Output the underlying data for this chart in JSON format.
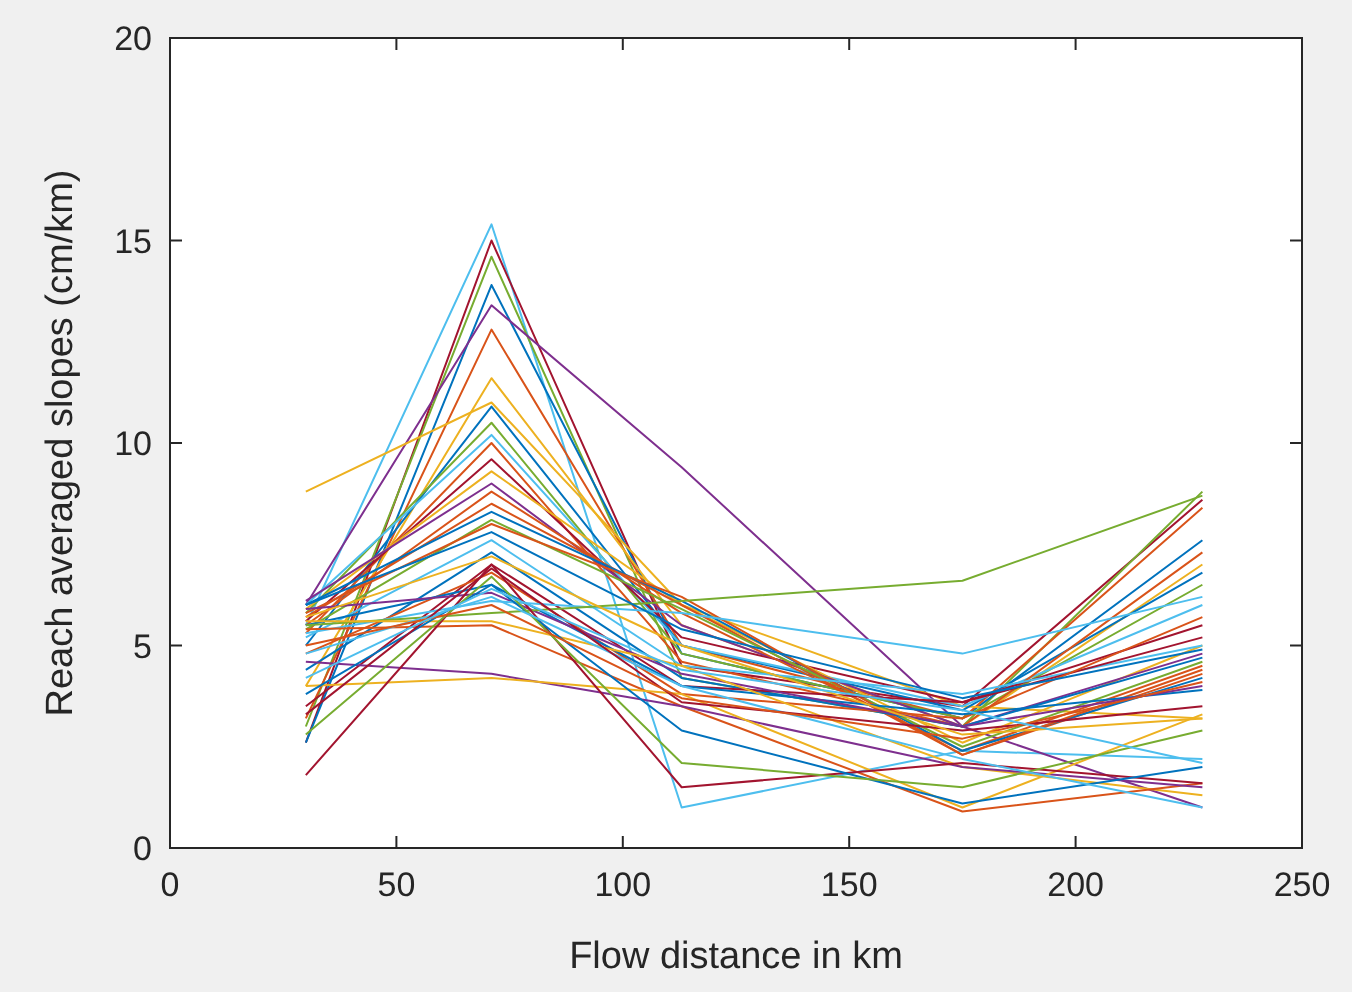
{
  "chart_data": {
    "type": "line",
    "xlabel": "Flow distance in km",
    "ylabel": "Reach averaged slopes (cm/km)",
    "x": [
      30,
      71,
      113,
      175,
      228
    ],
    "xlim": [
      0,
      250
    ],
    "xticks": [
      0,
      50,
      100,
      150,
      200,
      250
    ],
    "ylim": [
      0,
      20
    ],
    "yticks": [
      0,
      5,
      10,
      15,
      20
    ],
    "series": [
      {
        "color": "#4dbeee",
        "values": [
          5.5,
          15.4,
          1.0,
          2.4,
          2.2
        ]
      },
      {
        "color": "#a2142f",
        "values": [
          2.6,
          15.0,
          4.5,
          3.5,
          8.6
        ]
      },
      {
        "color": "#77ac30",
        "values": [
          3.0,
          14.6,
          4.2,
          3.0,
          8.8
        ]
      },
      {
        "color": "#0072bd",
        "values": [
          2.6,
          13.9,
          4.8,
          3.2,
          7.6
        ]
      },
      {
        "color": "#7e2f8e",
        "values": [
          6.0,
          13.4,
          9.4,
          3.0,
          1.0
        ]
      },
      {
        "color": "#d95319",
        "values": [
          3.2,
          12.8,
          5.0,
          3.2,
          8.4
        ]
      },
      {
        "color": "#edb120",
        "values": [
          8.8,
          11.0,
          6.0,
          3.5,
          3.2
        ]
      },
      {
        "color": "#edb120",
        "values": [
          4.0,
          11.6,
          5.5,
          3.0,
          7.0
        ]
      },
      {
        "color": "#0072bd",
        "values": [
          5.0,
          10.9,
          5.0,
          3.4,
          6.8
        ]
      },
      {
        "color": "#77ac30",
        "values": [
          5.8,
          10.5,
          4.8,
          3.2,
          6.5
        ]
      },
      {
        "color": "#4dbeee",
        "values": [
          6.0,
          10.2,
          5.0,
          3.5,
          6.0
        ]
      },
      {
        "color": "#d95319",
        "values": [
          5.3,
          10.0,
          4.6,
          3.0,
          7.3
        ]
      },
      {
        "color": "#a2142f",
        "values": [
          5.6,
          9.6,
          5.2,
          3.6,
          5.5
        ]
      },
      {
        "color": "#edb120",
        "values": [
          5.9,
          9.3,
          6.0,
          2.6,
          5.0
        ]
      },
      {
        "color": "#7e2f8e",
        "values": [
          6.1,
          9.0,
          5.5,
          3.0,
          4.8
        ]
      },
      {
        "color": "#d95319",
        "values": [
          5.5,
          8.8,
          5.8,
          2.4,
          4.5
        ]
      },
      {
        "color": "#d95319",
        "values": [
          5.7,
          8.5,
          6.0,
          2.3,
          4.3
        ]
      },
      {
        "color": "#0072bd",
        "values": [
          6.0,
          8.3,
          6.1,
          2.4,
          4.2
        ]
      },
      {
        "color": "#77ac30",
        "values": [
          5.4,
          8.1,
          5.9,
          2.5,
          4.6
        ]
      },
      {
        "color": "#d95319",
        "values": [
          5.8,
          8.0,
          6.2,
          2.3,
          4.4
        ]
      },
      {
        "color": "#4dbeee",
        "values": [
          5.2,
          7.6,
          4.5,
          3.8,
          5.0
        ]
      },
      {
        "color": "#0072bd",
        "values": [
          4.4,
          7.3,
          4.2,
          3.0,
          4.7
        ]
      },
      {
        "color": "#a2142f",
        "values": [
          3.5,
          7.0,
          4.0,
          3.6,
          5.2
        ]
      },
      {
        "color": "#d95319",
        "values": [
          4.8,
          6.8,
          3.8,
          3.2,
          5.7
        ]
      },
      {
        "color": "#0072bd",
        "values": [
          5.5,
          6.5,
          4.0,
          3.3,
          3.9
        ]
      },
      {
        "color": "#7e2f8e",
        "values": [
          5.9,
          6.3,
          4.3,
          3.0,
          4.0
        ]
      },
      {
        "color": "#4dbeee",
        "values": [
          5.3,
          6.1,
          5.8,
          4.8,
          6.2
        ]
      },
      {
        "color": "#77ac30",
        "values": [
          5.5,
          5.8,
          6.1,
          6.6,
          8.7
        ]
      },
      {
        "color": "#edb120",
        "values": [
          5.6,
          5.6,
          4.5,
          2.0,
          1.3
        ]
      },
      {
        "color": "#d95319",
        "values": [
          5.4,
          5.5,
          3.5,
          0.9,
          1.6
        ]
      },
      {
        "color": "#7e2f8e",
        "values": [
          4.6,
          4.3,
          3.5,
          2.0,
          1.5
        ]
      },
      {
        "color": "#edb120",
        "values": [
          4.0,
          4.2,
          3.8,
          1.0,
          3.3
        ]
      },
      {
        "color": "#a2142f",
        "values": [
          1.8,
          7.0,
          1.5,
          2.1,
          1.6
        ]
      },
      {
        "color": "#0072bd",
        "values": [
          3.8,
          6.5,
          2.9,
          1.1,
          2.0
        ]
      },
      {
        "color": "#77ac30",
        "values": [
          2.8,
          6.7,
          2.1,
          1.5,
          2.9
        ]
      },
      {
        "color": "#4dbeee",
        "values": [
          4.8,
          6.2,
          4.0,
          2.2,
          1.0
        ]
      },
      {
        "color": "#a2142f",
        "values": [
          3.3,
          6.9,
          3.6,
          2.9,
          3.5
        ]
      },
      {
        "color": "#d95319",
        "values": [
          5.0,
          6.0,
          3.7,
          2.7,
          4.1
        ]
      },
      {
        "color": "#edb120",
        "values": [
          5.7,
          7.2,
          5.0,
          2.8,
          3.2
        ]
      },
      {
        "color": "#0072bd",
        "values": [
          6.0,
          7.8,
          5.4,
          3.7,
          4.9
        ]
      },
      {
        "color": "#4dbeee",
        "values": [
          4.2,
          6.4,
          4.4,
          3.4,
          2.1
        ]
      }
    ]
  }
}
